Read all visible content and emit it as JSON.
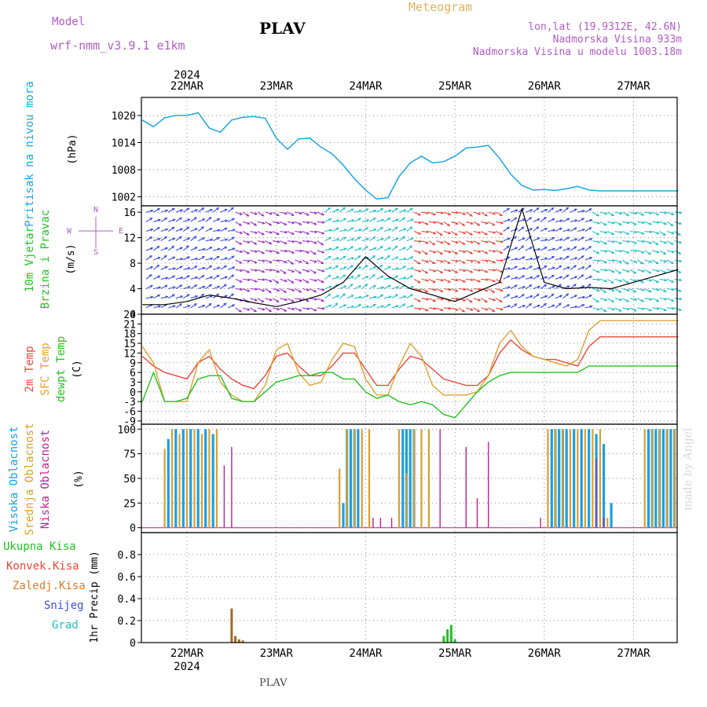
{
  "header": {
    "model_label": "Model",
    "model_name": "wrf-nmm_v3.9.1 e1km",
    "station": "PLAV",
    "title": "Meteogram",
    "lonlat": "lon,lat (19.9312E, 42.6N)",
    "altitude": "Nadmorska Visina 933m",
    "altitude_model": "Nadmorska Visina u modelu 1003.18m",
    "footer_station": "PLAV",
    "credit": "made by Angel"
  },
  "colors": {
    "pressure": "#1aa7e0",
    "temp2m": "#e8473a",
    "sfc_temp": "#e0a030",
    "dewpt": "#22c322",
    "cloud_high": "#1aa0e0",
    "cloud_mid": "#d8a030",
    "cloud_low": "#c0208a",
    "rain_total": "#22c322",
    "rain_conv": "#e8473a",
    "rain_frozen": "#e07a2a",
    "snow": "#3c4ee0",
    "grad": "#20c0c0",
    "label_purple": "#b05cc6"
  },
  "time_axis": {
    "year": "2024",
    "days": [
      "22MAR",
      "23MAR",
      "24MAR",
      "25MAR",
      "26MAR",
      "27MAR"
    ]
  },
  "chart_data": [
    {
      "id": "pressure",
      "type": "line",
      "ylabel": "Pritisak na nivou mora",
      "unit": "(hPa)",
      "ylim": [
        1000,
        1024
      ],
      "yticks": [
        1002,
        1008,
        1014,
        1020
      ],
      "xlim": [
        0,
        144
      ],
      "grid": true,
      "x": [
        0,
        3,
        6,
        9,
        12,
        15,
        18,
        21,
        24,
        27,
        30,
        33,
        36,
        39,
        42,
        45,
        48,
        51,
        54,
        57,
        60,
        63,
        66,
        69,
        72,
        75,
        78,
        81,
        84,
        87,
        90,
        93,
        96,
        99,
        102,
        105,
        108,
        111,
        114,
        117,
        120,
        123,
        126,
        129,
        132,
        135,
        138,
        141,
        144
      ],
      "values": [
        1019.0,
        1017.5,
        1019.5,
        1020.0,
        1020.0,
        1020.6,
        1017.2,
        1016.3,
        1019.0,
        1019.6,
        1019.8,
        1019.4,
        1015.0,
        1012.5,
        1014.8,
        1015.0,
        1013.0,
        1011.5,
        1009.0,
        1006.0,
        1003.5,
        1001.5,
        1001.8,
        1006.5,
        1009.5,
        1011.0,
        1009.5,
        1009.8,
        1011.0,
        1012.8,
        1013.0,
        1013.4,
        1010.5,
        1007.0,
        1004.5,
        1003.5,
        1003.6,
        1003.4,
        1003.8,
        1004.3,
        1003.5,
        1003.3,
        1003.3,
        1003.3,
        1003.3,
        1003.3,
        1003.3,
        1003.3,
        1003.3
      ]
    },
    {
      "id": "wind",
      "type": "line",
      "ylabel": "10m Vjetar",
      "ylabel2": "Brzina i Pravac",
      "unit": "(m/s)",
      "compass": {
        "n": "N",
        "e": "E",
        "w": "W",
        "s": "S"
      },
      "ylim": [
        0,
        17
      ],
      "yticks": [
        0,
        4,
        8,
        12,
        16
      ],
      "xlim": [
        0,
        144
      ],
      "x": [
        0,
        6,
        12,
        18,
        24,
        30,
        36,
        42,
        48,
        54,
        60,
        66,
        72,
        78,
        84,
        90,
        96,
        102,
        108,
        114,
        120,
        126,
        132,
        138,
        144
      ],
      "values": [
        1.5,
        1.5,
        2.0,
        3.0,
        2.5,
        1.8,
        1.2,
        2.0,
        3.0,
        5.0,
        9.0,
        6.0,
        4.0,
        3.0,
        2.0,
        3.5,
        5.0,
        16.5,
        5.0,
        4.0,
        4.2,
        4.0,
        5.0,
        6.0,
        7.0
      ],
      "arrow_color_bands": [
        {
          "from": 0,
          "to": 24,
          "color": "#3c4ee0"
        },
        {
          "from": 24,
          "to": 48,
          "color": "#9b32c8"
        },
        {
          "from": 48,
          "to": 72,
          "color": "#22c0c8"
        },
        {
          "from": 72,
          "to": 96,
          "color": "#e8473a"
        },
        {
          "from": 96,
          "to": 120,
          "color": "#3c4ee0"
        },
        {
          "from": 120,
          "to": 144,
          "color": "#22c0c8"
        }
      ]
    },
    {
      "id": "temperature",
      "type": "line",
      "ylabel": "2m Temp",
      "ylabel2": "SFC Temp",
      "ylabel3": "dewpt Temp",
      "unit": "(C)",
      "ylim": [
        -10,
        24
      ],
      "yticks": [
        -9,
        -6,
        -3,
        0,
        3,
        6,
        9,
        12,
        15,
        18,
        21,
        24
      ],
      "xlim": [
        0,
        144
      ],
      "series": [
        {
          "id": "temp2m",
          "x": [
            0,
            3,
            6,
            9,
            12,
            15,
            18,
            21,
            24,
            27,
            30,
            33,
            36,
            39,
            42,
            45,
            48,
            51,
            54,
            57,
            60,
            63,
            66,
            69,
            72,
            75,
            78,
            81,
            84,
            87,
            90,
            93,
            96,
            99,
            102,
            105,
            108,
            111,
            114,
            117,
            120,
            123,
            126,
            129,
            132,
            135,
            138,
            141,
            144
          ],
          "values": [
            11,
            8,
            6,
            5,
            4,
            9,
            11,
            7,
            4,
            2,
            1,
            5,
            11,
            12,
            8,
            5,
            5,
            8,
            12,
            12,
            7,
            2,
            2,
            7,
            11,
            10,
            7,
            4,
            3,
            2,
            2,
            5,
            12,
            16,
            13,
            11,
            10,
            10,
            9,
            8,
            14,
            17,
            17,
            17,
            17,
            17,
            17,
            17,
            17
          ]
        },
        {
          "id": "sfc_temp",
          "x": [
            0,
            3,
            6,
            9,
            12,
            15,
            18,
            21,
            24,
            27,
            30,
            33,
            36,
            39,
            42,
            45,
            48,
            51,
            54,
            57,
            60,
            63,
            66,
            69,
            72,
            75,
            78,
            81,
            84,
            87,
            90,
            93,
            96,
            99,
            102,
            105,
            108,
            111,
            114,
            117,
            120,
            123,
            126,
            129,
            132,
            135,
            138,
            141,
            144
          ],
          "values": [
            14,
            9,
            -3,
            -3,
            -3,
            9,
            13,
            3,
            -1,
            -3,
            -3,
            2,
            13,
            15,
            6,
            2,
            3,
            10,
            15,
            14,
            4,
            -1,
            -1,
            8,
            15,
            11,
            2,
            -1,
            -1,
            -1,
            0,
            5,
            15,
            19,
            14,
            11,
            10,
            9,
            8,
            10,
            19,
            22,
            22,
            22,
            22,
            22,
            22,
            22,
            22
          ]
        },
        {
          "id": "dewpt",
          "x": [
            0,
            3,
            6,
            9,
            12,
            15,
            18,
            21,
            24,
            27,
            30,
            33,
            36,
            39,
            42,
            45,
            48,
            51,
            54,
            57,
            60,
            63,
            66,
            69,
            72,
            75,
            78,
            81,
            84,
            87,
            90,
            93,
            96,
            99,
            102,
            105,
            108,
            111,
            114,
            117,
            120,
            123,
            126,
            129,
            132,
            135,
            138,
            141,
            144
          ],
          "values": [
            -3,
            6,
            -3,
            -3,
            -2,
            4,
            5,
            5,
            -2,
            -3,
            -3,
            0,
            3,
            4,
            5,
            5,
            6,
            6,
            4,
            4,
            0,
            -2,
            -1,
            -3,
            -4,
            -3,
            -4,
            -7,
            -8,
            -4,
            0,
            3,
            5,
            6,
            6,
            6,
            6,
            6,
            6,
            6,
            8,
            8,
            8,
            8,
            8,
            8,
            8,
            8,
            8
          ]
        }
      ]
    },
    {
      "id": "clouds",
      "type": "bar",
      "ylabel": "Visoka Oblacnost",
      "ylabel2": "Srednja Oblacnost",
      "ylabel3": "Niska Oblacnost",
      "unit": "(%)",
      "ylim": [
        -5,
        105
      ],
      "yticks": [
        0,
        25,
        50,
        75,
        100
      ],
      "xlim": [
        0,
        144
      ],
      "high": {
        "x": [
          7,
          9,
          11,
          13,
          15,
          17,
          19,
          54,
          55,
          56,
          57,
          58,
          70,
          71,
          72,
          73,
          110,
          111,
          112,
          113,
          114,
          116,
          118,
          120,
          122,
          124,
          126,
          136,
          137,
          138,
          139,
          140,
          141,
          142,
          143
        ],
        "values": [
          90,
          100,
          100,
          100,
          100,
          100,
          95,
          25,
          100,
          100,
          100,
          100,
          100,
          100,
          100,
          100,
          100,
          100,
          100,
          100,
          100,
          100,
          100,
          100,
          95,
          85,
          25,
          100,
          100,
          100,
          100,
          100,
          100,
          100,
          100
        ]
      },
      "mid": {
        "x": [
          6,
          8,
          10,
          12,
          14,
          16,
          18,
          20,
          53,
          55,
          57,
          59,
          61,
          69,
          71,
          73,
          75,
          77,
          109,
          111,
          113,
          115,
          117,
          119,
          121,
          123,
          125,
          135,
          137,
          139,
          141,
          143
        ],
        "values": [
          80,
          100,
          95,
          100,
          100,
          95,
          100,
          100,
          60,
          100,
          100,
          100,
          100,
          100,
          55,
          100,
          100,
          100,
          100,
          100,
          100,
          100,
          100,
          100,
          100,
          100,
          10,
          100,
          100,
          100,
          100,
          100
        ]
      },
      "low": {
        "x": [
          22,
          24,
          62,
          64,
          67,
          80,
          87,
          90,
          93,
          107,
          122,
          124
        ],
        "values": [
          63,
          82,
          10,
          10,
          10,
          100,
          82,
          30,
          87,
          10,
          70,
          10
        ]
      }
    },
    {
      "id": "precip",
      "type": "bar",
      "ylabel": "1hr Precip (mm)",
      "labels": [
        "Ukupna Kisa",
        "Konvek.Kisa",
        "Zaledj.Kisa",
        "Snijeg",
        "Grad"
      ],
      "ylim": [
        0,
        1.0
      ],
      "yticks": [
        0,
        0.2,
        0.4,
        0.6,
        0.8
      ],
      "xlim": [
        0,
        144
      ],
      "x": [
        24,
        25,
        26,
        27,
        81,
        82,
        83,
        84
      ],
      "values": [
        0.31,
        0.06,
        0.03,
        0.02,
        0.06,
        0.12,
        0.16,
        0.03
      ]
    }
  ]
}
